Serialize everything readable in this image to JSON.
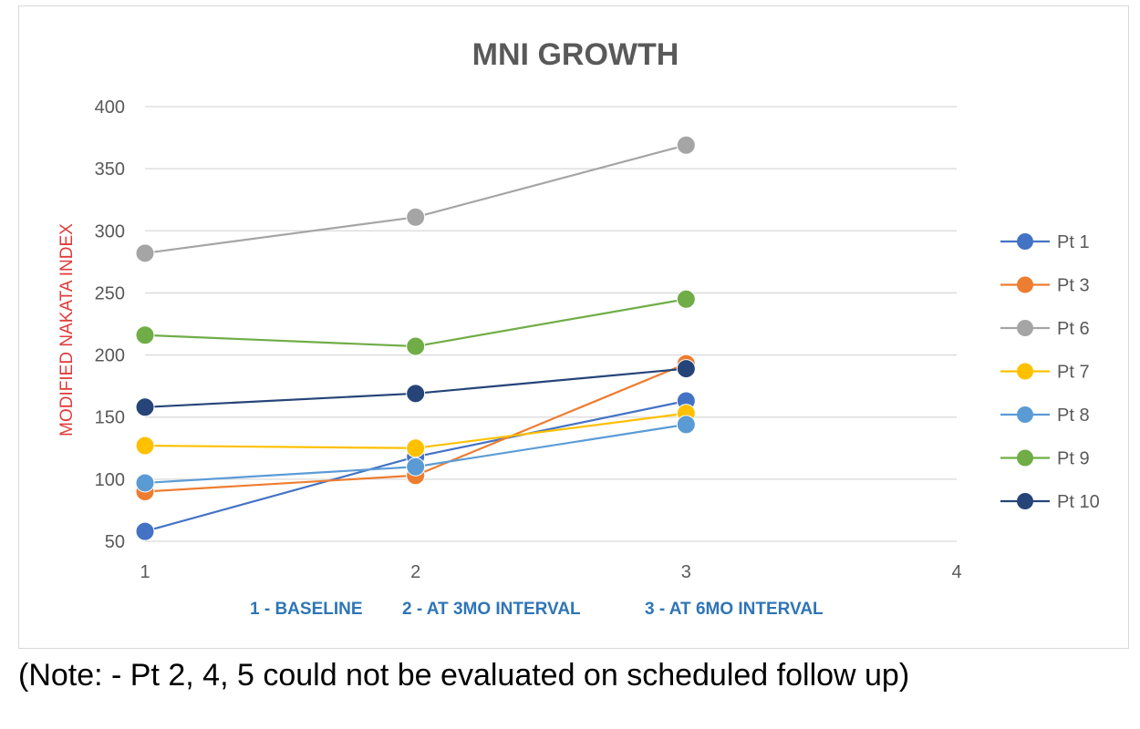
{
  "note": "(Note: - Pt 2, 4, 5 could not be evaluated on scheduled follow up)",
  "chart_data": {
    "type": "line",
    "title": "MNI GROWTH",
    "ylabel": "MODIFIED NAKATA INDEX",
    "xlabel_parts": [
      "1 - BASELINE",
      "2 - AT 3MO INTERVAL",
      "3 - AT 6MO INTERVAL"
    ],
    "x": [
      1,
      2,
      3
    ],
    "xlim": [
      1,
      4
    ],
    "x_ticks": [
      1,
      2,
      3,
      4
    ],
    "ylim": [
      50,
      400
    ],
    "y_ticks": [
      50,
      100,
      150,
      200,
      250,
      300,
      350,
      400
    ],
    "grid": true,
    "legend_position": "right",
    "colors": {
      "title": "#595959",
      "ylabel": "#e03a3a",
      "xlabel": "#2e75b6",
      "tick": "#595959",
      "grid": "#d9d9d9"
    },
    "series": [
      {
        "name": "Pt 1",
        "color": "#4472c4",
        "values": [
          58,
          118,
          163
        ]
      },
      {
        "name": "Pt 3",
        "color": "#ed7d31",
        "values": [
          90,
          103,
          193
        ]
      },
      {
        "name": "Pt 6",
        "color": "#a5a5a5",
        "values": [
          282,
          311,
          369
        ]
      },
      {
        "name": "Pt 7",
        "color": "#ffc000",
        "values": [
          127,
          125,
          153
        ]
      },
      {
        "name": "Pt 8",
        "color": "#5b9bd5",
        "values": [
          97,
          110,
          144
        ]
      },
      {
        "name": "Pt 9",
        "color": "#70ad47",
        "values": [
          216,
          207,
          245
        ]
      },
      {
        "name": "Pt 10",
        "color": "#264478",
        "values": [
          158,
          169,
          189
        ]
      }
    ]
  }
}
